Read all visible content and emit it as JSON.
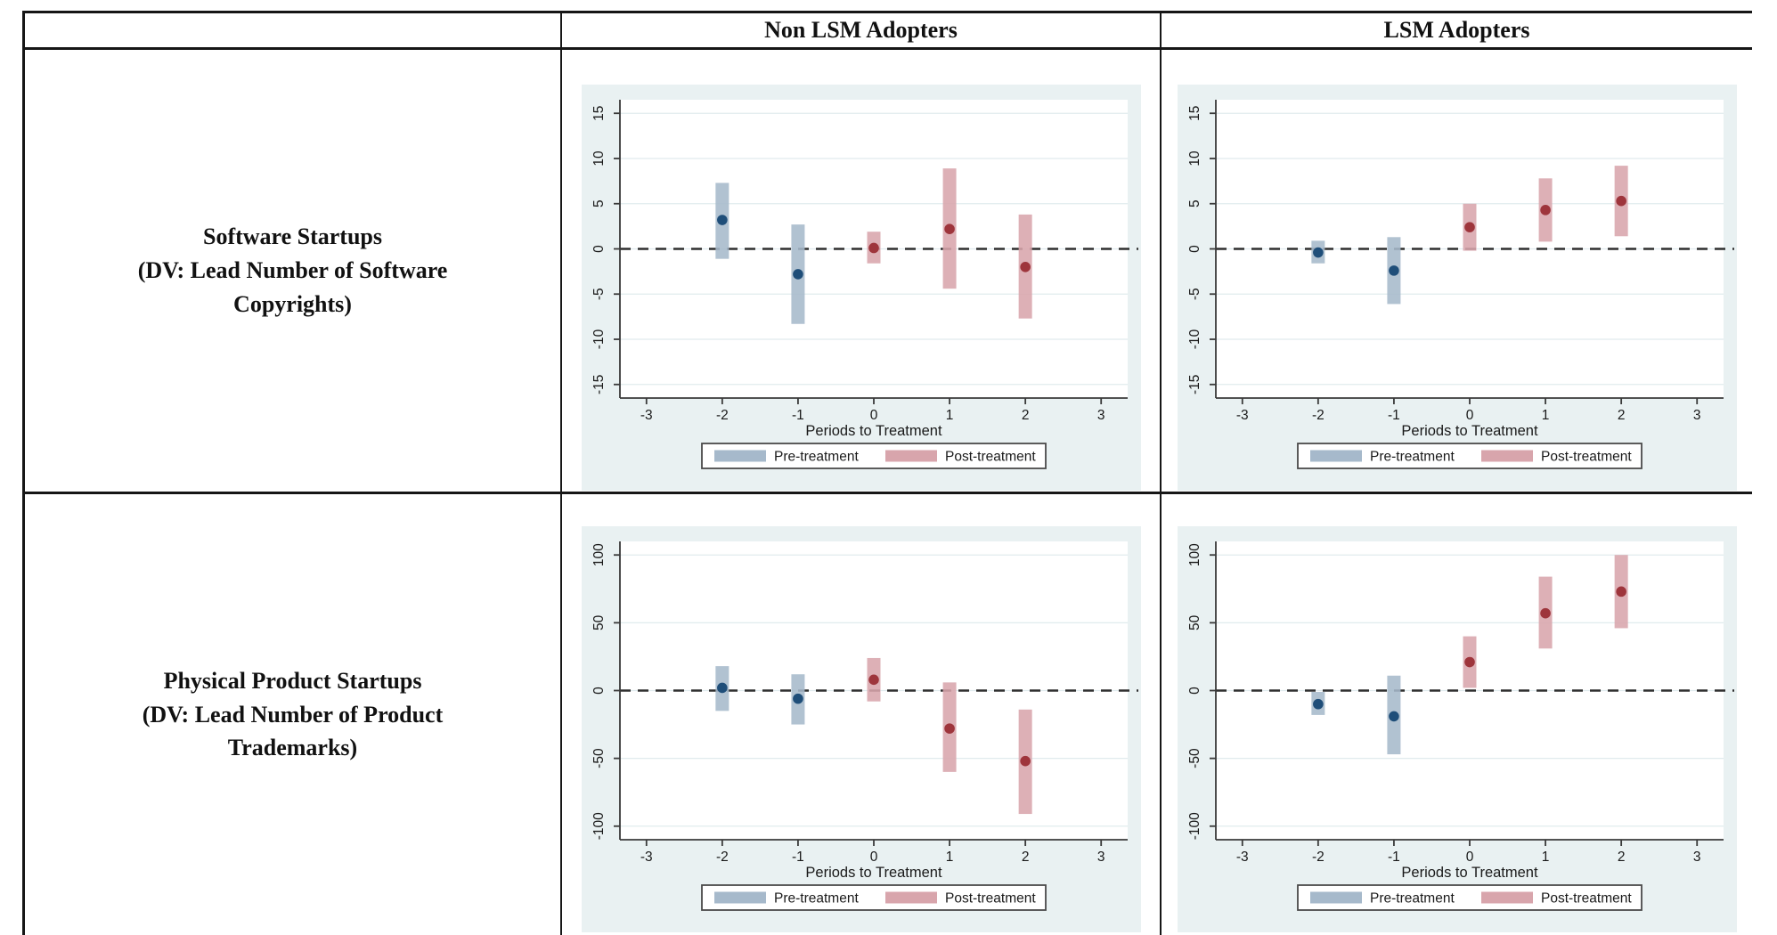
{
  "table": {
    "col_headers": [
      "Non LSM Adopters",
      "LSM Adopters"
    ],
    "row_labels": [
      "Software Startups\n(DV: Lead Number of Software\nCopyrights)",
      "Physical Product Startups\n(DV: Lead Number of Product\nTrademarks)"
    ]
  },
  "colors": {
    "chart_bg": "#e9f1f2",
    "plot_bg": "#ffffff",
    "grid": "#e0ebee",
    "spine": "#3a3a3a",
    "zero_line": "#2e2e2e",
    "pre_bar": "#a6b9cb",
    "pre_dot": "#1f4e79",
    "post_bar": "#d8a5ac",
    "post_dot": "#9e353c",
    "legend_border": "#4a4a4a",
    "table_border": "#161616"
  },
  "chart_data": [
    {
      "type": "scatter",
      "title": "Software Startups - Non LSM Adopters",
      "xlabel": "Periods to Treatment",
      "ylabel": "",
      "xlim": [
        -3.35,
        3.35
      ],
      "ylim": [
        -15,
        15
      ],
      "x_ticks": [
        -3,
        -2,
        -1,
        0,
        1,
        2,
        3
      ],
      "y_ticks": [
        -15,
        -10,
        -5,
        0,
        5,
        10,
        15
      ],
      "grid": true,
      "zero_line": true,
      "legend_position": "bottom",
      "legend": [
        "Pre-treatment",
        "Post-treatment"
      ],
      "series": [
        {
          "name": "Pre-treatment",
          "points": [
            {
              "x": -2,
              "y": 3.2,
              "lo": -1.1,
              "hi": 7.3
            },
            {
              "x": -1,
              "y": -2.8,
              "lo": -8.3,
              "hi": 2.7
            }
          ]
        },
        {
          "name": "Post-treatment",
          "points": [
            {
              "x": 0,
              "y": 0.1,
              "lo": -1.6,
              "hi": 1.9
            },
            {
              "x": 1,
              "y": 2.2,
              "lo": -4.4,
              "hi": 8.9
            },
            {
              "x": 2,
              "y": -2.0,
              "lo": -7.7,
              "hi": 3.8
            }
          ]
        }
      ]
    },
    {
      "type": "scatter",
      "title": "Software Startups - LSM Adopters",
      "xlabel": "Periods to Treatment",
      "ylabel": "",
      "xlim": [
        -3.35,
        3.35
      ],
      "ylim": [
        -15,
        15
      ],
      "x_ticks": [
        -3,
        -2,
        -1,
        0,
        1,
        2,
        3
      ],
      "y_ticks": [
        -15,
        -10,
        -5,
        0,
        5,
        10,
        15
      ],
      "grid": true,
      "zero_line": true,
      "legend_position": "bottom",
      "legend": [
        "Pre-treatment",
        "Post-treatment"
      ],
      "series": [
        {
          "name": "Pre-treatment",
          "points": [
            {
              "x": -2,
              "y": -0.4,
              "lo": -1.6,
              "hi": 0.9
            },
            {
              "x": -1,
              "y": -2.4,
              "lo": -6.1,
              "hi": 1.3
            }
          ]
        },
        {
          "name": "Post-treatment",
          "points": [
            {
              "x": 0,
              "y": 2.4,
              "lo": -0.2,
              "hi": 5.0
            },
            {
              "x": 1,
              "y": 4.3,
              "lo": 0.8,
              "hi": 7.8
            },
            {
              "x": 2,
              "y": 5.3,
              "lo": 1.4,
              "hi": 9.2
            }
          ]
        }
      ]
    },
    {
      "type": "scatter",
      "title": "Physical Product Startups - Non LSM Adopters",
      "xlabel": "Periods to Treatment",
      "ylabel": "",
      "xlim": [
        -3.35,
        3.35
      ],
      "ylim": [
        -100,
        100
      ],
      "x_ticks": [
        -3,
        -2,
        -1,
        0,
        1,
        2,
        3
      ],
      "y_ticks": [
        -100,
        -50,
        0,
        50,
        100
      ],
      "grid": true,
      "zero_line": true,
      "legend_position": "bottom",
      "legend": [
        "Pre-treatment",
        "Post-treatment"
      ],
      "series": [
        {
          "name": "Pre-treatment",
          "points": [
            {
              "x": -2,
              "y": 2,
              "lo": -15,
              "hi": 18
            },
            {
              "x": -1,
              "y": -6,
              "lo": -25,
              "hi": 12
            }
          ]
        },
        {
          "name": "Post-treatment",
          "points": [
            {
              "x": 0,
              "y": 8,
              "lo": -8,
              "hi": 24
            },
            {
              "x": 1,
              "y": -28,
              "lo": -60,
              "hi": 6
            },
            {
              "x": 2,
              "y": -52,
              "lo": -91,
              "hi": -14
            }
          ]
        }
      ]
    },
    {
      "type": "scatter",
      "title": "Physical Product Startups - LSM Adopters",
      "xlabel": "Periods to Treatment",
      "ylabel": "",
      "xlim": [
        -3.35,
        3.35
      ],
      "ylim": [
        -100,
        100
      ],
      "x_ticks": [
        -3,
        -2,
        -1,
        0,
        1,
        2,
        3
      ],
      "y_ticks": [
        -100,
        -50,
        0,
        50,
        100
      ],
      "grid": true,
      "zero_line": true,
      "legend_position": "bottom",
      "legend": [
        "Pre-treatment",
        "Post-treatment"
      ],
      "series": [
        {
          "name": "Pre-treatment",
          "points": [
            {
              "x": -2,
              "y": -10,
              "lo": -18,
              "hi": -1
            },
            {
              "x": -1,
              "y": -19,
              "lo": -47,
              "hi": 11
            }
          ]
        },
        {
          "name": "Post-treatment",
          "points": [
            {
              "x": 0,
              "y": 21,
              "lo": 2,
              "hi": 40
            },
            {
              "x": 1,
              "y": 57,
              "lo": 31,
              "hi": 84
            },
            {
              "x": 2,
              "y": 73,
              "lo": 46,
              "hi": 100
            }
          ]
        }
      ]
    }
  ]
}
